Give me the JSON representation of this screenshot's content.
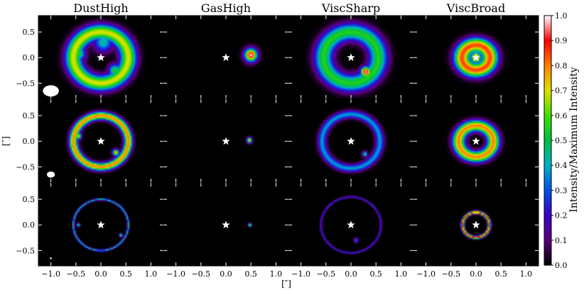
{
  "chart_data": {
    "type": "heatmap",
    "columns": [
      "DustHigh",
      "GasHigh",
      "ViscSharp",
      "ViscBroad"
    ],
    "rows": 3,
    "xlabel": "[″]",
    "ylabel": "[″]",
    "x_ticks": [
      -1.0,
      -0.5,
      0.0,
      0.5,
      1.0
    ],
    "x_tick_labels": [
      "−1.0",
      "−0.5",
      "0.0",
      "0.5",
      "1.0"
    ],
    "y_ticks": [
      0.5,
      0.0,
      -0.5
    ],
    "y_tick_labels": [
      "0.5",
      "0.0",
      "−0.5"
    ],
    "xlim": [
      -1.25,
      1.25
    ],
    "ylim": [
      -0.8,
      0.82
    ],
    "colorbar": {
      "label": "Intensity/Maximum Intensity",
      "range": [
        0.0,
        1.0
      ],
      "ticks": [
        0.0,
        0.1,
        0.2,
        0.3,
        0.4,
        0.5,
        0.6,
        0.7,
        0.8,
        0.9,
        1.0
      ],
      "tick_labels": [
        "0.0",
        "0.1",
        "0.2",
        "0.3",
        "0.4",
        "0.5",
        "0.6",
        "0.7",
        "0.8",
        "0.9",
        "1.0"
      ]
    },
    "star_marker": {
      "x": 0.0,
      "y": 0.0
    },
    "beams": [
      {
        "row": 0,
        "x": -1.0,
        "y": -0.65,
        "bmaj": 0.32,
        "bmin": 0.22
      },
      {
        "row": 1,
        "x": -1.0,
        "y": -0.65,
        "bmaj": 0.16,
        "bmin": 0.12
      },
      {
        "row": 2,
        "x": -1.0,
        "y": -0.65,
        "bmaj": 0.04,
        "bmin": 0.03
      }
    ],
    "panels": [
      {
        "row": 0,
        "col": 0,
        "rings": [
          {
            "r": 0.55,
            "w": 0.16,
            "I": 0.7,
            "e": 0.1
          }
        ],
        "clumps": [
          {
            "x": -0.45,
            "y": 0.08,
            "s": 0.14,
            "I": 0.55
          },
          {
            "x": 0.28,
            "y": -0.25,
            "s": 0.12,
            "I": 0.55
          },
          {
            "x": 0.05,
            "y": 0.3,
            "s": 0.18,
            "I": 0.45
          }
        ]
      },
      {
        "row": 0,
        "col": 1,
        "rings": [],
        "clumps": [
          {
            "x": 0.5,
            "y": 0.05,
            "s": 0.12,
            "I": 1.0
          }
        ]
      },
      {
        "row": 0,
        "col": 2,
        "rings": [
          {
            "r": 0.55,
            "w": 0.18,
            "I": 0.55,
            "e": 0.1
          }
        ],
        "clumps": [
          {
            "x": 0.3,
            "y": -0.28,
            "s": 0.1,
            "I": 1.0
          }
        ]
      },
      {
        "row": 0,
        "col": 3,
        "rings": [
          {
            "r": 0.28,
            "w": 0.16,
            "I": 0.85,
            "e": 0.15
          },
          {
            "r": 0.0,
            "w": 0.1,
            "I": 0.95,
            "e": 0.0
          }
        ],
        "clumps": []
      },
      {
        "row": 1,
        "col": 0,
        "rings": [
          {
            "r": 0.55,
            "w": 0.08,
            "I": 0.8,
            "e": 0.1
          }
        ],
        "clumps": [
          {
            "x": -0.45,
            "y": 0.1,
            "s": 0.06,
            "I": 0.7
          },
          {
            "x": 0.3,
            "y": -0.22,
            "s": 0.06,
            "I": 0.8
          }
        ]
      },
      {
        "row": 1,
        "col": 1,
        "rings": [],
        "clumps": [
          {
            "x": 0.47,
            "y": 0.02,
            "s": 0.05,
            "I": 0.8
          }
        ]
      },
      {
        "row": 1,
        "col": 2,
        "rings": [
          {
            "r": 0.58,
            "w": 0.08,
            "I": 0.38,
            "e": 0.1
          }
        ],
        "clumps": [
          {
            "x": 0.28,
            "y": -0.25,
            "s": 0.05,
            "I": 0.55
          }
        ]
      },
      {
        "row": 1,
        "col": 3,
        "rings": [
          {
            "r": 0.35,
            "w": 0.12,
            "I": 0.8,
            "e": 0.15
          }
        ],
        "clumps": []
      },
      {
        "row": 2,
        "col": 0,
        "rings": [
          {
            "r": 0.55,
            "w": 0.02,
            "I": 0.45,
            "e": 0.1
          }
        ],
        "clumps": [
          {
            "x": -0.45,
            "y": 0.0,
            "s": 0.03,
            "I": 0.6
          },
          {
            "x": 0.4,
            "y": -0.2,
            "s": 0.03,
            "I": 0.6
          }
        ]
      },
      {
        "row": 2,
        "col": 1,
        "rings": [],
        "clumps": [
          {
            "x": 0.48,
            "y": 0.0,
            "s": 0.03,
            "I": 0.7
          }
        ]
      },
      {
        "row": 2,
        "col": 2,
        "rings": [
          {
            "r": 0.6,
            "w": 0.02,
            "I": 0.25,
            "e": 0.1
          }
        ],
        "clumps": [
          {
            "x": 0.1,
            "y": -0.3,
            "s": 0.04,
            "I": 0.35
          }
        ]
      },
      {
        "row": 2,
        "col": 3,
        "rings": [
          {
            "r": 0.27,
            "w": 0.03,
            "I": 0.9,
            "e": 0.1
          }
        ],
        "clumps": []
      }
    ]
  }
}
